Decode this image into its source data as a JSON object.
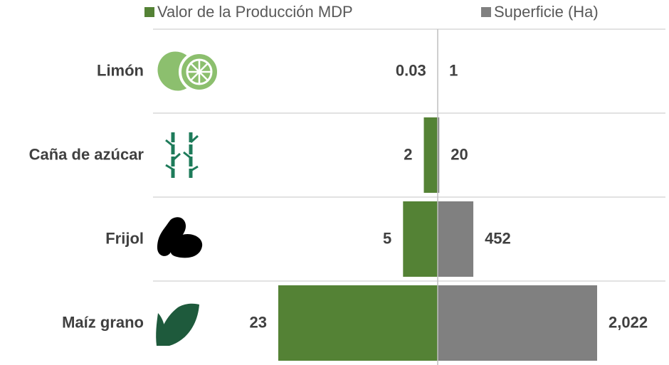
{
  "chart_data": {
    "type": "butterfly",
    "categories": [
      "Limón",
      "Caña de azúcar",
      "Frijol",
      "Maíz grano"
    ],
    "series": [
      {
        "name": "Valor de la Producción MDP",
        "color": "#548235",
        "values": [
          0.03,
          2,
          5,
          23
        ]
      },
      {
        "name": "Superficie (Ha)",
        "color": "#808080",
        "values": [
          1,
          20,
          452,
          2022
        ],
        "value_labels": [
          "1",
          "20",
          "452",
          "2,022"
        ]
      }
    ]
  }
}
